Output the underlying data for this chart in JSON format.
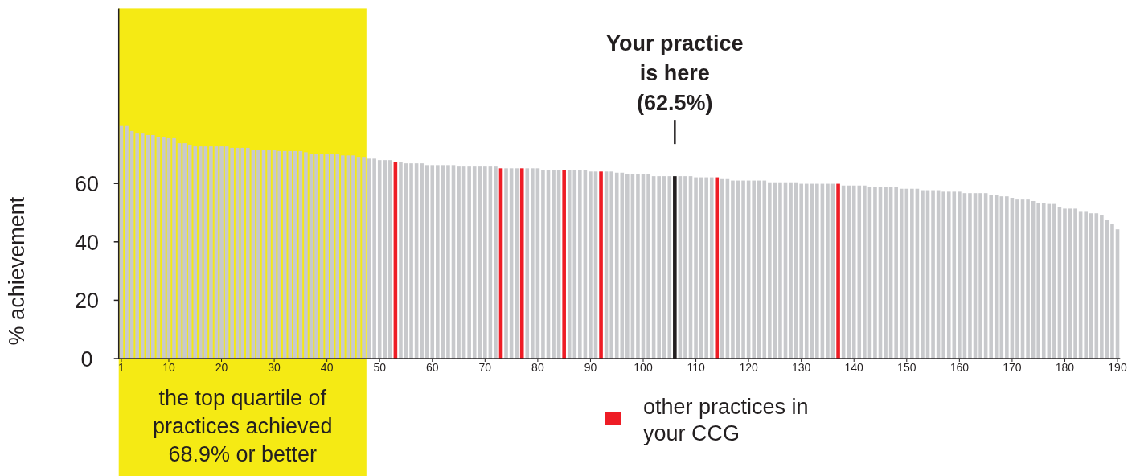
{
  "chart_data": {
    "type": "bar",
    "ylabel": "% achievement",
    "x": [
      1,
      2,
      3,
      4,
      5,
      6,
      7,
      8,
      9,
      10,
      11,
      12,
      13,
      14,
      15,
      16,
      17,
      18,
      19,
      20,
      21,
      22,
      23,
      24,
      25,
      26,
      27,
      28,
      29,
      30,
      31,
      32,
      33,
      34,
      35,
      36,
      37,
      38,
      39,
      40,
      41,
      42,
      43,
      44,
      45,
      46,
      47,
      48,
      49,
      50,
      51,
      52,
      53,
      54,
      55,
      56,
      57,
      58,
      59,
      60,
      61,
      62,
      63,
      64,
      65,
      66,
      67,
      68,
      69,
      70,
      71,
      72,
      73,
      74,
      75,
      76,
      77,
      78,
      79,
      80,
      81,
      82,
      83,
      84,
      85,
      86,
      87,
      88,
      89,
      90,
      91,
      92,
      93,
      94,
      95,
      96,
      97,
      98,
      99,
      100,
      101,
      102,
      103,
      104,
      105,
      106,
      107,
      108,
      109,
      110,
      111,
      112,
      113,
      114,
      115,
      116,
      117,
      118,
      119,
      120,
      121,
      122,
      123,
      124,
      125,
      126,
      127,
      128,
      129,
      130,
      131,
      132,
      133,
      134,
      135,
      136,
      137,
      138,
      139,
      140,
      141,
      142,
      143,
      144,
      145,
      146,
      147,
      148,
      149,
      150,
      151,
      152,
      153,
      154,
      155,
      156,
      157,
      158,
      159,
      160,
      161,
      162,
      163,
      164,
      165,
      166,
      167,
      168,
      169,
      170,
      171,
      172,
      173,
      174,
      175,
      176,
      177,
      178,
      179,
      180,
      181,
      182,
      183,
      184,
      185,
      186,
      187,
      188,
      189,
      190
    ],
    "series": [
      {
        "color": "#c8c9cc",
        "values": [
          79.7,
          79.7,
          78.0,
          77.1,
          77.1,
          76.6,
          76.6,
          76.0,
          76.0,
          75.5,
          75.5,
          73.8,
          73.8,
          73.3,
          72.7,
          72.7,
          72.7,
          72.7,
          72.7,
          72.7,
          72.7,
          72.2,
          72.2,
          72.2,
          72.2,
          71.6,
          71.6,
          71.6,
          71.6,
          71.6,
          71.1,
          71.1,
          71.1,
          71.1,
          71.1,
          70.7,
          70.2,
          70.2,
          70.2,
          70.2,
          70.2,
          70.2,
          69.6,
          69.6,
          69.6,
          69.1,
          69.1,
          68.5,
          68.5,
          68.0,
          68.0,
          68.0,
          null,
          67.4,
          66.9,
          66.9,
          66.9,
          66.9,
          66.3,
          66.3,
          66.3,
          66.3,
          66.3,
          66.3,
          65.8,
          65.8,
          65.8,
          65.8,
          65.8,
          65.8,
          65.8,
          65.8,
          null,
          65.2,
          65.2,
          65.2,
          null,
          65.2,
          65.2,
          65.2,
          64.7,
          64.7,
          64.7,
          64.7,
          null,
          64.7,
          64.7,
          64.7,
          64.7,
          64.1,
          64.1,
          null,
          64.1,
          64.1,
          63.7,
          63.7,
          63.2,
          63.2,
          63.2,
          63.2,
          63.2,
          62.5,
          62.5,
          62.5,
          62.5,
          null,
          62.5,
          62.5,
          62.5,
          62.1,
          62.1,
          62.1,
          62.1,
          null,
          61.5,
          61.5,
          61.0,
          61.0,
          61.0,
          61.0,
          61.0,
          61.0,
          61.0,
          60.4,
          60.4,
          60.4,
          60.4,
          60.4,
          60.4,
          59.9,
          59.9,
          59.9,
          59.9,
          59.9,
          59.9,
          59.9,
          null,
          59.3,
          59.3,
          59.3,
          59.3,
          59.3,
          58.8,
          58.8,
          58.8,
          58.8,
          58.8,
          58.8,
          58.2,
          58.2,
          58.2,
          58.2,
          57.7,
          57.7,
          57.7,
          57.7,
          57.2,
          57.2,
          57.2,
          57.2,
          56.7,
          56.7,
          56.7,
          56.7,
          56.7,
          56.2,
          56.2,
          55.6,
          55.6,
          55.1,
          54.5,
          54.5,
          54.5,
          54.0,
          53.4,
          53.4,
          53.0,
          53.0,
          52.0,
          51.4,
          51.4,
          51.4,
          50.3,
          50.3,
          49.8,
          49.8,
          49.2,
          47.6,
          46.0,
          44.3
        ]
      },
      {
        "name": "other practices in your CCG",
        "color": "#ee1c25",
        "x": [
          53,
          73,
          77,
          85,
          92,
          114,
          137
        ],
        "values": [
          67.4,
          65.2,
          65.2,
          64.7,
          64.1,
          62.1,
          59.9
        ]
      },
      {
        "color": "#231f20",
        "x": [
          106
        ],
        "values": [
          62.5
        ]
      }
    ],
    "xlim": [
      0.5,
      190.5
    ],
    "xticks": [
      1,
      10,
      20,
      30,
      40,
      50,
      60,
      70,
      80,
      90,
      100,
      110,
      120,
      130,
      140,
      150,
      160,
      170,
      180,
      190
    ],
    "ylim": [
      0,
      120
    ],
    "yticks": [
      0,
      20,
      40,
      60
    ],
    "bands": [
      {
        "axis": "x",
        "from": 0.5,
        "to": 47.5,
        "label": "the top quartile of\npractices achieved\n68.9% or better",
        "color": "#f5ea14"
      }
    ],
    "annotations": [
      {
        "text": "Your practice\nis here\n(62.5%)",
        "x": 106,
        "y": 62.5
      }
    ],
    "legend": "bottom"
  }
}
